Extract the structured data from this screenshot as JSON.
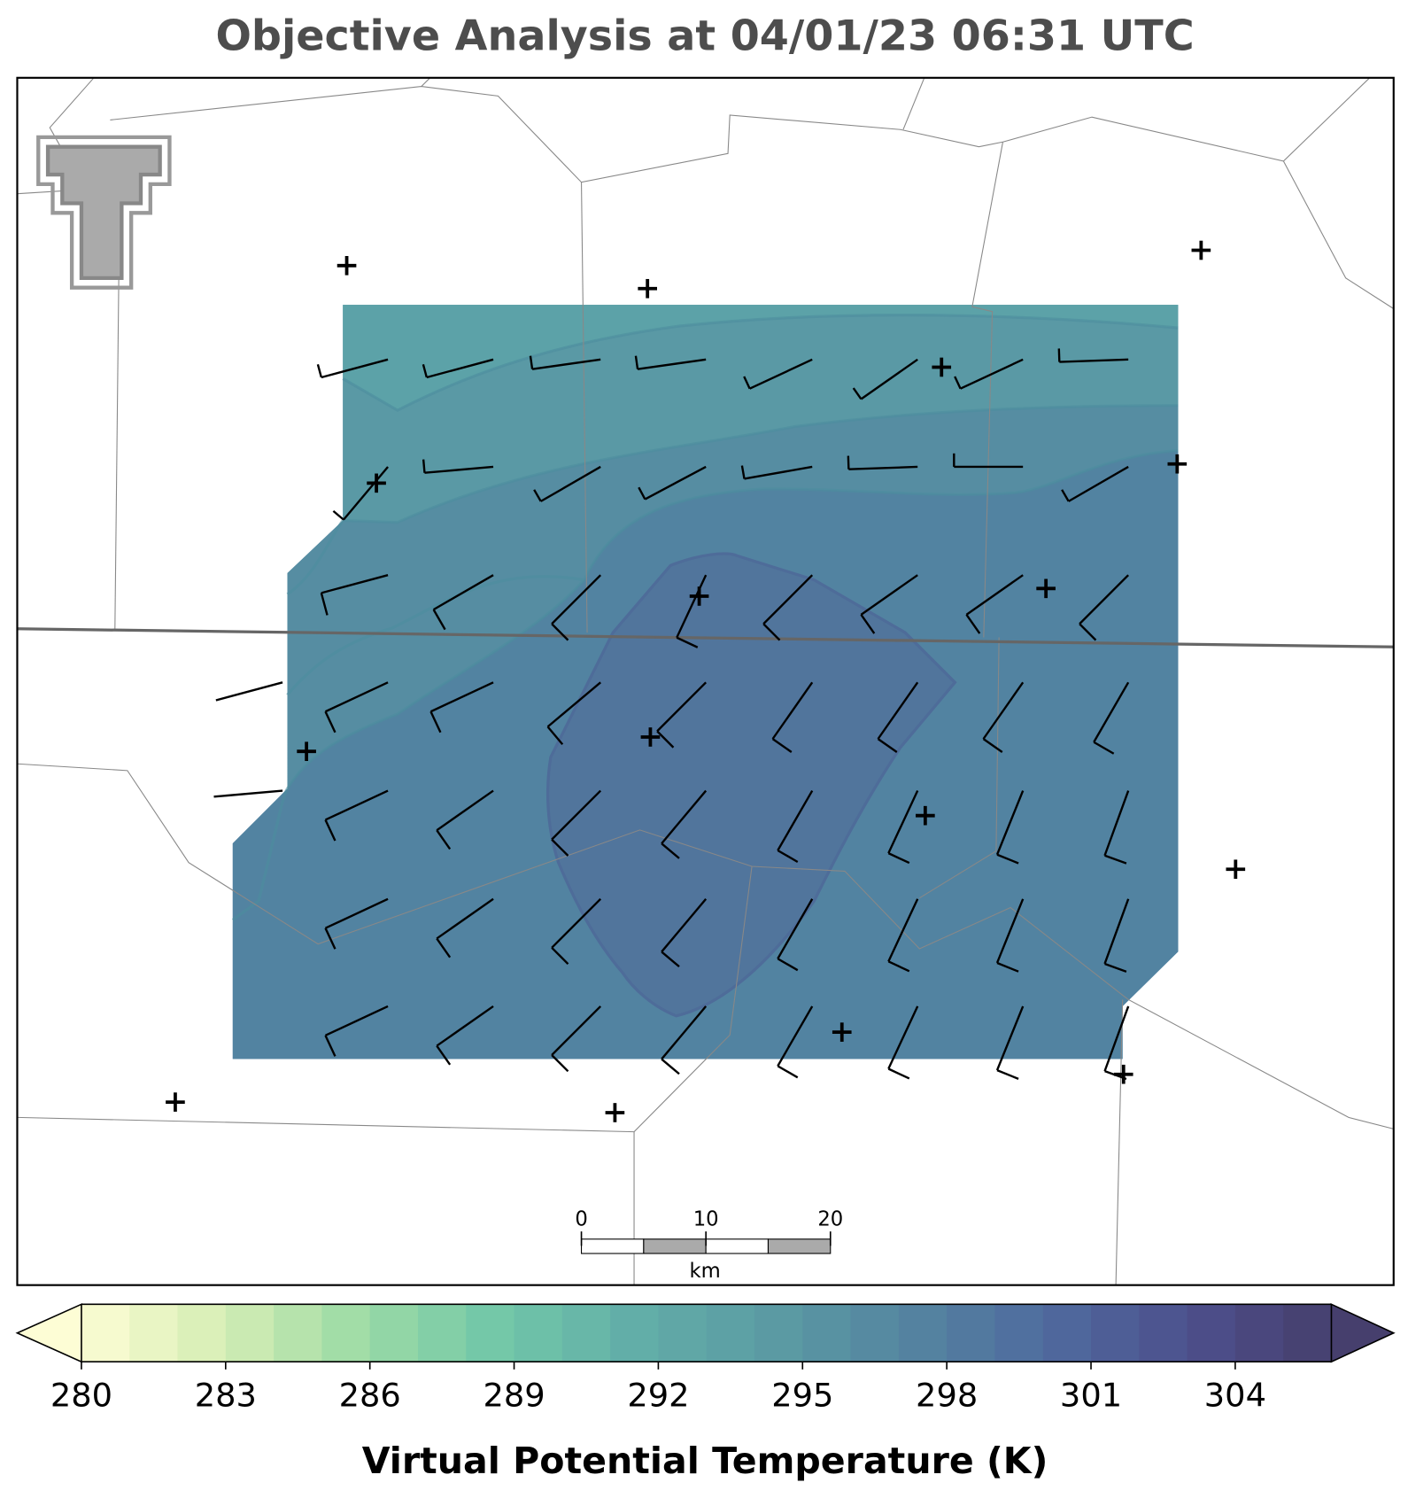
{
  "chart_data": {
    "type": "colorbar-map",
    "title": "Objective Analysis at 04/01/23 06:31 UTC",
    "colorbar_label": "Virtual Potential Temperature (K)",
    "xlim": [
      280,
      306
    ],
    "xticks": [
      280,
      283,
      286,
      289,
      292,
      295,
      298,
      301,
      304
    ],
    "colormap": [
      "#fdfdd5",
      "#d6eeb5",
      "#9ddba5",
      "#72c7a8",
      "#62aea8",
      "#5b9aa3",
      "#5483a0",
      "#4f6a9e",
      "#4d4f8c",
      "#463f6d"
    ],
    "scale_bar": {
      "ticks": [
        0,
        10,
        20
      ],
      "unit": "km"
    }
  }
}
